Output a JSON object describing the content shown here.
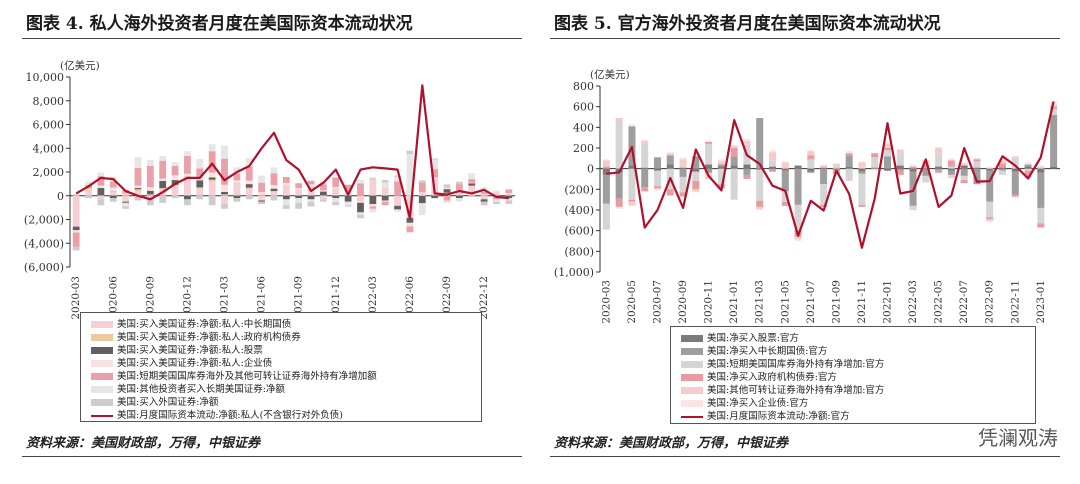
{
  "chart_data": [
    {
      "type": "bar",
      "title": "图表 4. 私人海外投资者月度在美国际资本流动状况",
      "unit": "(亿美元)",
      "ylim": [
        -6000,
        10000
      ],
      "yticks": [
        -6000,
        -4000,
        -2000,
        0,
        2000,
        4000,
        6000,
        8000,
        10000
      ],
      "ytick_labels": [
        "(6,000)",
        "(4,000)",
        "(2,000)",
        "0",
        "2,000",
        "4,000",
        "6,000",
        "8,000",
        "10,000"
      ],
      "x": [
        "2020-03",
        "2020-04",
        "2020-05",
        "2020-06",
        "2020-07",
        "2020-08",
        "2020-09",
        "2020-10",
        "2020-11",
        "2020-12",
        "2021-01",
        "2021-02",
        "2021-03",
        "2021-04",
        "2021-05",
        "2021-06",
        "2021-07",
        "2021-08",
        "2021-09",
        "2021-10",
        "2021-11",
        "2021-12",
        "2022-01",
        "2022-02",
        "2022-03",
        "2022-04",
        "2022-05",
        "2022-06",
        "2022-07",
        "2022-08",
        "2022-09",
        "2022-10",
        "2022-11",
        "2022-12",
        "2023-01",
        "2023-02"
      ],
      "xtick_labels": [
        "2020-03",
        "2020-06",
        "2020-09",
        "2020-12",
        "2021-03",
        "2021-06",
        "2021-09",
        "2021-12",
        "2022-03",
        "2022-06",
        "2022-09",
        "2022-12"
      ],
      "series": [
        {
          "name": "美国:买入美国证券:净额:私人:中长期国债",
          "color": "#f4cfd6",
          "values": [
            -2600,
            400,
            -300,
            300,
            -500,
            400,
            -300,
            500,
            800,
            1500,
            600,
            1200,
            -700,
            1000,
            600,
            -400,
            300,
            800,
            500,
            700,
            -300,
            600,
            400,
            -600,
            1400,
            600,
            -800,
            -1800,
            300,
            1400,
            200,
            300,
            800,
            -300,
            200,
            100
          ]
        },
        {
          "name": "美国:买入美国证券:净额:私人:政府机构债券",
          "color": "#f0c8a0",
          "values": [
            100,
            100,
            50,
            100,
            100,
            150,
            120,
            150,
            120,
            150,
            100,
            150,
            120,
            100,
            80,
            100,
            100,
            80,
            50,
            60,
            50,
            40,
            30,
            30,
            20,
            20,
            -50,
            -80,
            -30,
            40,
            60,
            80,
            50,
            40,
            60,
            30
          ]
        },
        {
          "name": "美国:买入美国证券:净额:私人:股票",
          "color": "#606060",
          "values": [
            -300,
            0,
            600,
            -200,
            -100,
            100,
            300,
            600,
            400,
            -300,
            600,
            200,
            200,
            -200,
            300,
            -100,
            200,
            -300,
            -200,
            -300,
            300,
            -200,
            -500,
            -800,
            -700,
            -400,
            -300,
            -400,
            -600,
            -200,
            300,
            -200,
            200,
            -200,
            -100,
            -200
          ]
        },
        {
          "name": "美国:买入美国证券:净额:私人:企业债",
          "color": "#f8e0e0",
          "values": [
            -200,
            100,
            200,
            300,
            100,
            200,
            300,
            200,
            400,
            200,
            300,
            400,
            600,
            200,
            300,
            200,
            300,
            200,
            100,
            200,
            100,
            100,
            -100,
            -200,
            -200,
            -100,
            -200,
            -300,
            -200,
            100,
            100,
            100,
            50,
            100,
            200,
            100
          ]
        },
        {
          "name": "美国:短期美国国库券海外及其他可转让证券海外持有净增加额",
          "color": "#eaa0a8",
          "values": [
            -1200,
            300,
            800,
            500,
            300,
            1500,
            1800,
            1500,
            800,
            1500,
            700,
            1800,
            2200,
            600,
            1200,
            800,
            1000,
            500,
            400,
            300,
            500,
            800,
            500,
            1000,
            -200,
            -300,
            1200,
            -500,
            800,
            700,
            -400,
            500,
            300,
            200,
            -200,
            300
          ]
        },
        {
          "name": "美国:其他投资者买入长期美国证券:净额",
          "color": "#e6e6e6",
          "values": [
            0,
            300,
            300,
            400,
            -300,
            900,
            500,
            400,
            300,
            400,
            800,
            600,
            1100,
            500,
            700,
            600,
            500,
            -500,
            -400,
            -200,
            300,
            -300,
            -200,
            300,
            -300,
            500,
            400,
            3500,
            -800,
            800,
            -200,
            -300,
            500,
            400,
            -200,
            -200
          ]
        },
        {
          "name": "美国:买入外国证券:净额",
          "color": "#cccccc",
          "values": [
            -300,
            -200,
            -500,
            -300,
            -200,
            -400,
            -500,
            -600,
            -200,
            -500,
            -300,
            -800,
            -400,
            -300,
            -300,
            -200,
            -400,
            -300,
            -500,
            -400,
            -200,
            -300,
            -100,
            -300,
            100,
            200,
            100,
            300,
            200,
            100,
            300,
            200,
            -100,
            -300,
            -200,
            -300
          ]
        }
      ],
      "line": {
        "name": "美国:月度国际资本流动:净额:私人(不含银行对外负债)",
        "color": "#b0102a",
        "values": [
          200,
          800,
          1500,
          1400,
          400,
          0,
          -300,
          300,
          1000,
          1500,
          1500,
          2700,
          1300,
          2000,
          2500,
          4000,
          5300,
          3000,
          2200,
          400,
          1100,
          2200,
          100,
          2200,
          2400,
          2300,
          2200,
          -1900,
          9300,
          200,
          100,
          400,
          200,
          500,
          -100,
          -200
        ]
      },
      "legend_position": "bottom",
      "source": "资料来源：美国财政部，万得，中银证券"
    },
    {
      "type": "bar",
      "title": "图表 5. 官方海外投资者月度在美国际资本流动状况",
      "unit": "(亿美元)",
      "ylim": [
        -1000,
        800
      ],
      "yticks": [
        -1000,
        -800,
        -600,
        -400,
        -200,
        0,
        200,
        400,
        600,
        800
      ],
      "ytick_labels": [
        "(1,000)",
        "(800)",
        "(600)",
        "(400)",
        "(200)",
        "0",
        "200",
        "400",
        "600",
        "800"
      ],
      "x": [
        "2020-03",
        "2020-04",
        "2020-05",
        "2020-06",
        "2020-07",
        "2020-08",
        "2020-09",
        "2020-10",
        "2020-11",
        "2020-12",
        "2021-01",
        "2021-02",
        "2021-03",
        "2021-04",
        "2021-05",
        "2021-06",
        "2021-07",
        "2021-08",
        "2021-09",
        "2021-10",
        "2021-11",
        "2021-12",
        "2022-01",
        "2022-02",
        "2022-03",
        "2022-04",
        "2022-05",
        "2022-06",
        "2022-07",
        "2022-08",
        "2022-09",
        "2022-10",
        "2022-11",
        "2022-12",
        "2023-01",
        "2023-02"
      ],
      "xtick_labels": [
        "2020-03",
        "2020-05",
        "2020-07",
        "2020-09",
        "2020-11",
        "2021-01",
        "2021-03",
        "2021-05",
        "2021-07",
        "2021-09",
        "2021-11",
        "2022-01",
        "2022-03",
        "2022-05",
        "2022-07",
        "2022-09",
        "2022-11",
        "2023-01"
      ],
      "series": [
        {
          "name": "美国:净买入股票:官方",
          "color": "#7a7a7a",
          "values": [
            -60,
            -40,
            30,
            10,
            -20,
            40,
            10,
            -30,
            40,
            20,
            30,
            40,
            -10,
            20,
            -20,
            30,
            -30,
            10,
            -10,
            20,
            -30,
            10,
            -20,
            30,
            -30,
            -10,
            20,
            -20,
            30,
            10,
            -20,
            10,
            -30,
            20,
            -40,
            20
          ]
        },
        {
          "name": "美国:净买入中长期国债:官方",
          "color": "#9e9e9e",
          "values": [
            -280,
            -250,
            380,
            -180,
            110,
            90,
            -80,
            120,
            -40,
            20,
            90,
            -60,
            490,
            -10,
            -200,
            -350,
            -10,
            -150,
            -10,
            110,
            -20,
            0,
            120,
            -20,
            -330,
            -60,
            -20,
            -40,
            -70,
            -150,
            -300,
            -20,
            -220,
            20,
            -340,
            500
          ]
        },
        {
          "name": "美国:短期美国国库券海外持有净增加:官方",
          "color": "#d5d5d5",
          "values": [
            -250,
            480,
            -300,
            230,
            -150,
            -200,
            -150,
            -90,
            200,
            -150,
            -300,
            190,
            -300,
            60,
            -100,
            -250,
            90,
            -200,
            20,
            -100,
            -300,
            100,
            60,
            120,
            -20,
            -60,
            120,
            20,
            -40,
            60,
            -150,
            -40,
            100,
            -20,
            -150,
            60
          ]
        },
        {
          "name": "美国:净买入政府机构债券:官方",
          "color": "#e89ca2",
          "values": [
            20,
            -80,
            -20,
            -40,
            -20,
            -60,
            -40,
            -80,
            20,
            -40,
            80,
            -40,
            -60,
            -20,
            -40,
            -60,
            40,
            -20,
            -30,
            20,
            -20,
            40,
            20,
            -40,
            20,
            40,
            -20,
            60,
            -30,
            20,
            -20,
            40,
            -20,
            -60,
            -40,
            20
          ]
        },
        {
          "name": "美国:其他可转让证券海外持有净增加:官方",
          "color": "#f4cccc",
          "values": [
            60,
            10,
            -40,
            30,
            -10,
            20,
            80,
            -20,
            -60,
            30,
            20,
            40,
            -20,
            80,
            60,
            -20,
            40,
            20,
            30,
            -20,
            60,
            -10,
            40,
            30,
            -20,
            40,
            60,
            -30,
            20,
            10,
            -20,
            30,
            20,
            -10,
            20,
            20
          ]
        },
        {
          "name": "美国:净买入企业债:官方",
          "color": "#fae4e4",
          "values": [
            10,
            -20,
            20,
            10,
            -10,
            10,
            20,
            -10,
            10,
            20,
            10,
            20,
            -10,
            20,
            10,
            -20,
            10,
            10,
            -10,
            20,
            10,
            -10,
            20,
            10,
            20,
            -10,
            10,
            20,
            10,
            -10,
            20,
            10,
            -10,
            20,
            10,
            30
          ]
        },
        {
          "name": "美国:月度国际资本流动:净额:官方",
          "color": "#b0102a",
          "values": [
            -50,
            -35,
            210,
            -570,
            -400,
            -90,
            -380,
            185,
            -70,
            -210,
            470,
            130,
            45,
            -165,
            -215,
            -650,
            -310,
            -405,
            -20,
            -245,
            -765,
            -290,
            440,
            -240,
            -215,
            90,
            -370,
            -260,
            200,
            -125,
            -120,
            120,
            30,
            -95,
            110,
            650
          ],
          "style": "line"
        }
      ],
      "legend_position": "bottom",
      "source": "资料来源：美国财政部，万得，中银证券",
      "watermark": "凭澜观涛"
    }
  ]
}
